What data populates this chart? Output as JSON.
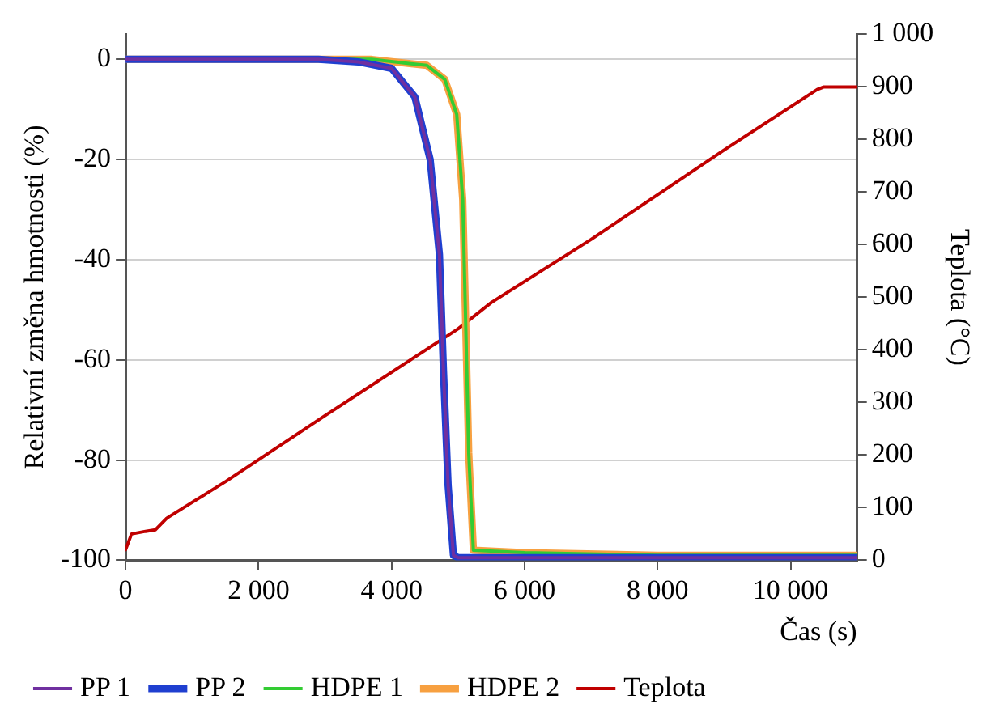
{
  "chart_data": {
    "type": "line",
    "xlabel": "Čas (s)",
    "ylabel": "Relativní změna hmotnosti (%)",
    "y2label": "Teplota (°C)",
    "xlim": [
      0,
      11000
    ],
    "xticks": [
      0,
      {
        "value": 2000,
        "label": "2 000"
      },
      {
        "value": 4000,
        "label": "4 000"
      },
      {
        "value": 6000,
        "label": "6 000"
      },
      {
        "value": 8000,
        "label": "8 000"
      },
      {
        "value": 10000,
        "label": "10 000"
      }
    ],
    "ylim": [
      -100,
      5
    ],
    "yticks": [
      -100,
      -80,
      -60,
      -40,
      -20,
      0
    ],
    "y2lim": [
      0,
      1000
    ],
    "y2ticks": [
      0,
      100,
      200,
      300,
      400,
      500,
      600,
      700,
      800,
      900,
      {
        "value": 1000,
        "label": "1 000"
      }
    ],
    "grid": "y",
    "legend": "bottom",
    "marker": "none",
    "line_style": "solid",
    "series": [
      {
        "name": "PP 1",
        "color": "#7030a0",
        "x": [
          0,
          2900,
          3500,
          4000,
          4350,
          4580,
          4720,
          4780,
          4850,
          4930,
          5000,
          6000,
          8000,
          11000
        ],
        "values": [
          0,
          0,
          -0.5,
          -1.8,
          -7.5,
          -20,
          -39,
          -62,
          -85,
          -99,
          -99.5,
          -99.5,
          -99.5,
          -99.5
        ]
      },
      {
        "name": "PP 2",
        "color": "#1f3fd0",
        "x": [
          0,
          2900,
          3500,
          4000,
          4350,
          4580,
          4720,
          4780,
          4850,
          4930,
          5000,
          6000,
          8000,
          11000
        ],
        "values": [
          0,
          0,
          -0.5,
          -1.8,
          -7.5,
          -20,
          -39,
          -62,
          -85,
          -99,
          -99.5,
          -99.5,
          -99.5,
          -99.5
        ]
      },
      {
        "name": "HDPE 1",
        "color": "#33cc33",
        "x": [
          0,
          3700,
          4530,
          4800,
          4980,
          5070,
          5110,
          5160,
          5230,
          6000,
          8000,
          11000
        ],
        "values": [
          0,
          0,
          -1.2,
          -4,
          -11,
          -28,
          -50,
          -78.6,
          -98,
          -98.5,
          -99,
          -99
        ]
      },
      {
        "name": "HDPE 2",
        "color": "#f7a040",
        "x": [
          0,
          3700,
          4530,
          4800,
          4980,
          5070,
          5110,
          5160,
          5230,
          6000,
          8000,
          11000
        ],
        "values": [
          0,
          0,
          -1.2,
          -4,
          -11,
          -28,
          -50,
          -78.6,
          -98,
          -98.5,
          -99,
          -99
        ]
      },
      {
        "name": "Teplota",
        "color": "#c00000",
        "axis": "y2",
        "x": [
          0,
          90,
          300,
          450,
          620,
          1000,
          1510,
          3000,
          5000,
          5500,
          7000,
          9000,
          10400,
          10500,
          11000
        ],
        "values": [
          20,
          50,
          55,
          58,
          80,
          110,
          150,
          275,
          440,
          490,
          610,
          780,
          895,
          900,
          900
        ]
      }
    ]
  }
}
